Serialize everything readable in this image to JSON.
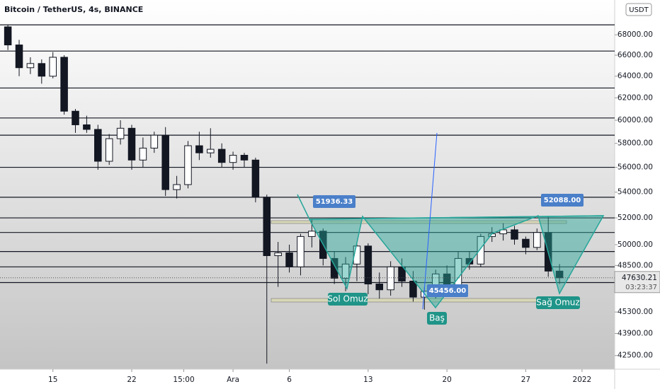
{
  "chart_data": {
    "type": "candlestick",
    "title": "Bitcoin / TetherUS, 4s, BINANCE",
    "currency": "USDT",
    "log_scale": true,
    "x": [
      -4,
      -3,
      -2,
      -1,
      0,
      1,
      2,
      3,
      4,
      5,
      6,
      7,
      8,
      9,
      10,
      11,
      12,
      13,
      14,
      15,
      16,
      17,
      18,
      19,
      20,
      21,
      22,
      23,
      24,
      25,
      26,
      27,
      28,
      29,
      30,
      31,
      32,
      33,
      34,
      35,
      36,
      37,
      38,
      39,
      40,
      41,
      42,
      43,
      44,
      45
    ],
    "open": [
      68800,
      67000,
      64800,
      65200,
      64000,
      65800,
      60800,
      59600,
      59200,
      56500,
      58400,
      59300,
      56600,
      57600,
      58700,
      54200,
      54600,
      57800,
      57200,
      57500,
      56400,
      57000,
      56600,
      53600,
      49200,
      49400,
      48400,
      50600,
      51000,
      49000,
      47600,
      48600,
      49900,
      47200,
      46800,
      48400,
      47400,
      46300,
      46700,
      47900,
      46900,
      49000,
      48600,
      50600,
      50800,
      51100,
      50400,
      49800,
      50900,
      48100
    ],
    "high": [
      69000,
      67500,
      65800,
      65600,
      66300,
      66000,
      61000,
      60400,
      59600,
      58800,
      60000,
      59600,
      58500,
      59000,
      59400,
      55300,
      58200,
      59000,
      59300,
      58000,
      57300,
      57200,
      56800,
      53800,
      50200,
      50000,
      50800,
      51900,
      51200,
      49500,
      49100,
      50200,
      50100,
      48000,
      48800,
      49000,
      48100,
      47000,
      48200,
      48500,
      49500,
      49500,
      50800,
      51300,
      51600,
      51400,
      50600,
      51200,
      52088,
      48600
    ],
    "low": [
      66500,
      64000,
      64200,
      63300,
      63800,
      60500,
      58900,
      58900,
      55800,
      56200,
      57900,
      55800,
      56000,
      57200,
      53700,
      53500,
      54300,
      56600,
      56800,
      56000,
      55800,
      56000,
      53200,
      42000,
      47000,
      48000,
      47800,
      49800,
      48500,
      47200,
      46700,
      47400,
      46500,
      46200,
      46400,
      47000,
      46000,
      45456,
      46200,
      46600,
      46700,
      48200,
      48400,
      50200,
      50300,
      50000,
      49300,
      49600,
      47700,
      47200
    ],
    "close": [
      67000,
      64800,
      65200,
      64000,
      65800,
      60800,
      59600,
      59200,
      56500,
      58400,
      59300,
      56600,
      57600,
      58700,
      54200,
      54600,
      57800,
      57200,
      57500,
      56400,
      57000,
      56600,
      53600,
      49200,
      49400,
      48400,
      50600,
      51000,
      49000,
      47600,
      48600,
      49900,
      47200,
      46800,
      48400,
      47400,
      46300,
      46700,
      47900,
      46900,
      49000,
      48600,
      50600,
      50800,
      51100,
      50400,
      49800,
      50900,
      48100,
      47630.21
    ],
    "up_color": "#ffffff",
    "down_color": "#131722",
    "xlim": [
      -4.7,
      49.9
    ],
    "xticks": [
      {
        "value": 0,
        "label": "15"
      },
      {
        "value": 7,
        "label": "22"
      },
      {
        "value": 11.625,
        "label": "15:00"
      },
      {
        "value": 16,
        "label": "Ara"
      },
      {
        "value": 21,
        "label": "6"
      },
      {
        "value": 28,
        "label": "13"
      },
      {
        "value": 35,
        "label": "20"
      },
      {
        "value": 42,
        "label": "27"
      },
      {
        "value": 47,
        "label": "2022"
      }
    ],
    "ylim": [
      41660,
      71560
    ],
    "yticks": [
      {
        "value": 68000,
        "label": "68000.00"
      },
      {
        "value": 66000,
        "label": "66000.00"
      },
      {
        "value": 64000,
        "label": "64000.00"
      },
      {
        "value": 62000,
        "label": "62000.00"
      },
      {
        "value": 60000,
        "label": "60000.00"
      },
      {
        "value": 58000,
        "label": "58000.00"
      },
      {
        "value": 56000,
        "label": "56000.00"
      },
      {
        "value": 54000,
        "label": "54000.00"
      },
      {
        "value": 52000,
        "label": "52000.00"
      },
      {
        "value": 50000,
        "label": "50000.00"
      },
      {
        "value": 48500,
        "label": "48500.00"
      },
      {
        "value": 45300,
        "label": "45300.00"
      },
      {
        "value": 43900,
        "label": "43900.00"
      },
      {
        "value": 42500,
        "label": "42500.00"
      }
    ],
    "horizontal_levels": [
      69000,
      66400,
      62900,
      60200,
      58700,
      56000,
      53600,
      52000,
      50900,
      49500,
      48400,
      47300
    ],
    "current_price": 47630.21,
    "countdown": "03:23:37",
    "price_annotations": [
      51936.33,
      {
        "value": 52088,
        "label": "52088.00"
      },
      {
        "value": 45456,
        "label": "45456.00"
      }
    ],
    "pattern_labels": [
      "Sol Omuz",
      "Baş",
      "Sağ Omuz"
    ]
  }
}
